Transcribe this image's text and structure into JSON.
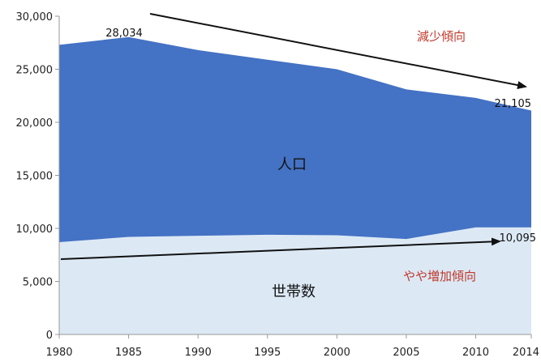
{
  "chart_data": {
    "type": "area",
    "x": [
      1980,
      1985,
      1990,
      1995,
      2000,
      2005,
      2010,
      2014
    ],
    "series": [
      {
        "name": "人口",
        "values": [
          27300,
          28034,
          26800,
          25900,
          25000,
          23100,
          22300,
          21105
        ]
      },
      {
        "name": "世帯数",
        "values": [
          8700,
          9200,
          9300,
          9400,
          9350,
          9000,
          10100,
          10095
        ]
      }
    ],
    "ylim": [
      0,
      30000
    ],
    "yticks": [
      "0",
      "5,000",
      "10,000",
      "15,000",
      "20,000",
      "25,000",
      "30,000"
    ],
    "xticks": [
      "1980",
      "1985",
      "1990",
      "1995",
      "2000",
      "2005",
      "2010",
      "2014"
    ],
    "data_labels": {
      "pop_max": "28,034",
      "pop_end": "21,105",
      "hh_end": "10,095"
    },
    "annotations": {
      "decrease": "減少傾向",
      "increase": "やや増加傾向"
    },
    "colors": {
      "population": "#4472c4",
      "households": "#dce9f5",
      "trend_text": "#c0392b",
      "arrow": "#111111"
    },
    "grid": false,
    "legend": "none"
  }
}
